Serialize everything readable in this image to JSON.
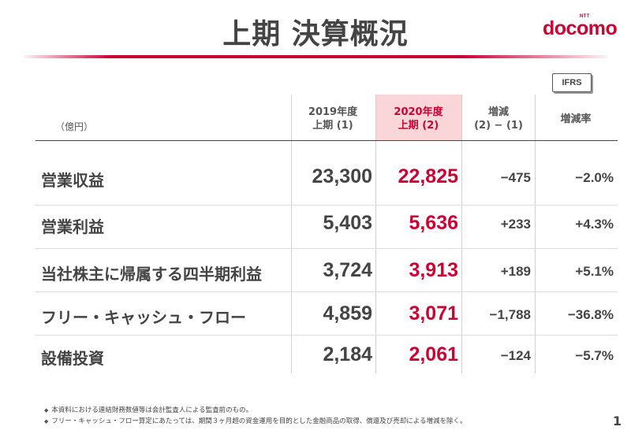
{
  "title": "上期 決算概況",
  "logo": {
    "ntt": "NTT",
    "word": "docomo"
  },
  "badge": "IFRS",
  "unit": "（億円）",
  "columns": [
    {
      "line1": "2019年度",
      "line2": "上期 (1)"
    },
    {
      "line1": "2020年度",
      "line2": "上期 (2)"
    },
    {
      "line1": "増減",
      "line2": "(2) − (1)"
    },
    {
      "line1": "増減率",
      "line2": ""
    }
  ],
  "rows": [
    {
      "label": "営業収益",
      "fy2019": "23,300",
      "fy2020": "22,825",
      "diff": "−475",
      "rate": "−2.0%"
    },
    {
      "label": "営業利益",
      "fy2019": "5,403",
      "fy2020": "5,636",
      "diff": "+233",
      "rate": "+4.3%"
    },
    {
      "label": "当社株主に帰属する四半期利益",
      "fy2019": "3,724",
      "fy2020": "3,913",
      "diff": "+189",
      "rate": "+5.1%"
    },
    {
      "label": "フリー・キャッシュ・フロー",
      "fy2019": "4,859",
      "fy2020": "3,071",
      "diff": "−1,788",
      "rate": "−36.8%"
    },
    {
      "label": "設備投資",
      "fy2019": "2,184",
      "fy2020": "2,061",
      "diff": "−124",
      "rate": "−5.7%"
    }
  ],
  "notes": [
    "本資料における連結財務数値等は会計監査人による監査前のもの。",
    "フリー・キャッシュ・フロー算定にあたっては、期間３ヶ月超の資金運用を目的とした金融商品の取得、償還及び売却による増減を除く。"
  ],
  "page_number": "1",
  "colors": {
    "accent": "#cc0033",
    "highlight": "#fbd6d8"
  }
}
